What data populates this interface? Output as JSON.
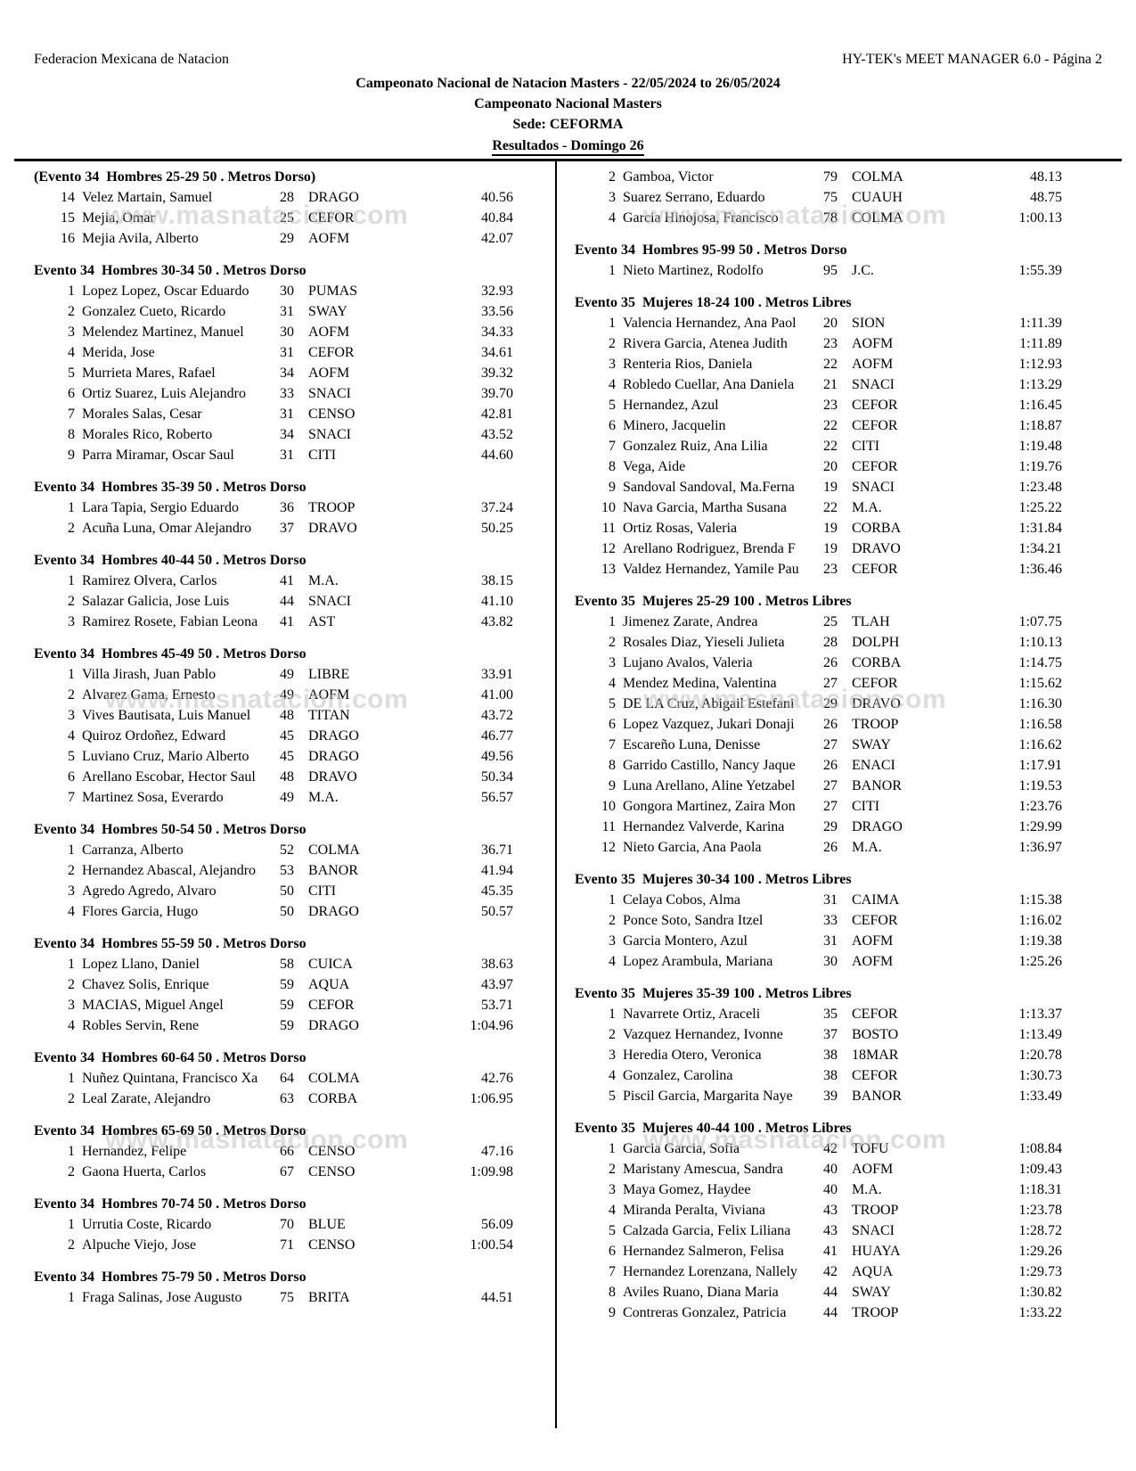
{
  "header": {
    "org": "Federacion Mexicana de Natacion",
    "software": "HY-TEK's MEET MANAGER 6.0 - Página 2",
    "title": "Campeonato Nacional de Natacion Masters - 22/05/2024 to 26/05/2024",
    "subtitle": "Campeonato Nacional Masters",
    "venue": "Sede: CEFORMA",
    "section": "Resultados - Domingo 26"
  },
  "watermark": {
    "text": "www.masnatacion.com"
  },
  "results": {
    "left": [
      {
        "heading": "(Evento 34  Hombres 25-29 50 . Metros Dorso)",
        "rows": [
          {
            "place": "14",
            "name": "Velez Martain, Samuel",
            "age": "28",
            "team": "DRAGO",
            "time": "40.56"
          },
          {
            "place": "15",
            "name": "Mejia, Omar",
            "age": "25",
            "team": "CEFOR",
            "time": "40.84"
          },
          {
            "place": "16",
            "name": "Mejia Avila, Alberto",
            "age": "29",
            "team": "AOFM",
            "time": "42.07"
          }
        ]
      },
      {
        "heading": "Evento 34  Hombres 30-34 50 . Metros Dorso",
        "rows": [
          {
            "place": "1",
            "name": "Lopez Lopez, Oscar Eduardo",
            "age": "30",
            "team": "PUMAS",
            "time": "32.93"
          },
          {
            "place": "2",
            "name": "Gonzalez Cueto, Ricardo",
            "age": "31",
            "team": "SWAY",
            "time": "33.56"
          },
          {
            "place": "3",
            "name": "Melendez Martinez, Manuel",
            "age": "30",
            "team": "AOFM",
            "time": "34.33"
          },
          {
            "place": "4",
            "name": "Merida, Jose",
            "age": "31",
            "team": "CEFOR",
            "time": "34.61"
          },
          {
            "place": "5",
            "name": "Murrieta Mares, Rafael",
            "age": "34",
            "team": "AOFM",
            "time": "39.32"
          },
          {
            "place": "6",
            "name": "Ortiz Suarez, Luis Alejandro",
            "age": "33",
            "team": "SNACI",
            "time": "39.70"
          },
          {
            "place": "7",
            "name": "Morales Salas, Cesar",
            "age": "31",
            "team": "CENSO",
            "time": "42.81"
          },
          {
            "place": "8",
            "name": "Morales Rico, Roberto",
            "age": "34",
            "team": "SNACI",
            "time": "43.52"
          },
          {
            "place": "9",
            "name": "Parra Miramar, Oscar Saul",
            "age": "31",
            "team": "CITI",
            "time": "44.60"
          }
        ]
      },
      {
        "heading": "Evento 34  Hombres 35-39 50 . Metros Dorso",
        "rows": [
          {
            "place": "1",
            "name": "Lara Tapia, Sergio Eduardo",
            "age": "36",
            "team": "TROOP",
            "time": "37.24"
          },
          {
            "place": "2",
            "name": "Acuña Luna, Omar Alejandro",
            "age": "37",
            "team": "DRAVO",
            "time": "50.25"
          }
        ]
      },
      {
        "heading": "Evento 34  Hombres 40-44 50 . Metros Dorso",
        "rows": [
          {
            "place": "1",
            "name": "Ramirez Olvera, Carlos",
            "age": "41",
            "team": "M.A.",
            "time": "38.15"
          },
          {
            "place": "2",
            "name": "Salazar Galicia, Jose Luis",
            "age": "44",
            "team": "SNACI",
            "time": "41.10"
          },
          {
            "place": "3",
            "name": "Ramirez Rosete, Fabian Leona",
            "age": "41",
            "team": "AST",
            "time": "43.82"
          }
        ]
      },
      {
        "heading": "Evento 34  Hombres 45-49 50 . Metros Dorso",
        "rows": [
          {
            "place": "1",
            "name": "Villa Jirash, Juan Pablo",
            "age": "49",
            "team": "LIBRE",
            "time": "33.91"
          },
          {
            "place": "2",
            "name": "Alvarez Gama, Ernesto",
            "age": "49",
            "team": "AOFM",
            "time": "41.00"
          },
          {
            "place": "3",
            "name": "Vives Bautisata, Luis Manuel",
            "age": "48",
            "team": "TITAN",
            "time": "43.72"
          },
          {
            "place": "4",
            "name": "Quiroz Ordoñez, Edward",
            "age": "45",
            "team": "DRAGO",
            "time": "46.77"
          },
          {
            "place": "5",
            "name": "Luviano Cruz, Mario Alberto",
            "age": "45",
            "team": "DRAGO",
            "time": "49.56"
          },
          {
            "place": "6",
            "name": "Arellano Escobar, Hector Saul",
            "age": "48",
            "team": "DRAVO",
            "time": "50.34"
          },
          {
            "place": "7",
            "name": "Martinez Sosa, Everardo",
            "age": "49",
            "team": "M.A.",
            "time": "56.57"
          }
        ]
      },
      {
        "heading": "Evento 34  Hombres 50-54 50 . Metros Dorso",
        "rows": [
          {
            "place": "1",
            "name": "Carranza, Alberto",
            "age": "52",
            "team": "COLMA",
            "time": "36.71"
          },
          {
            "place": "2",
            "name": "Hernandez Abascal, Alejandro",
            "age": "53",
            "team": "BANOR",
            "time": "41.94"
          },
          {
            "place": "3",
            "name": "Agredo Agredo, Alvaro",
            "age": "50",
            "team": "CITI",
            "time": "45.35"
          },
          {
            "place": "4",
            "name": "Flores Garcia, Hugo",
            "age": "50",
            "team": "DRAGO",
            "time": "50.57"
          }
        ]
      },
      {
        "heading": "Evento 34  Hombres 55-59 50 . Metros Dorso",
        "rows": [
          {
            "place": "1",
            "name": "Lopez Llano, Daniel",
            "age": "58",
            "team": "CUICA",
            "time": "38.63"
          },
          {
            "place": "2",
            "name": "Chavez Solis, Enrique",
            "age": "59",
            "team": "AQUA",
            "time": "43.97"
          },
          {
            "place": "3",
            "name": "MACIAS, Miguel Angel",
            "age": "59",
            "team": "CEFOR",
            "time": "53.71"
          },
          {
            "place": "4",
            "name": "Robles Servin, Rene",
            "age": "59",
            "team": "DRAGO",
            "time": "1:04.96"
          }
        ]
      },
      {
        "heading": "Evento 34  Hombres 60-64 50 . Metros Dorso",
        "rows": [
          {
            "place": "1",
            "name": "Nuñez Quintana, Francisco Xa",
            "age": "64",
            "team": "COLMA",
            "time": "42.76"
          },
          {
            "place": "2",
            "name": "Leal Zarate, Alejandro",
            "age": "63",
            "team": "CORBA",
            "time": "1:06.95"
          }
        ]
      },
      {
        "heading": "Evento 34  Hombres 65-69 50 . Metros Dorso",
        "rows": [
          {
            "place": "1",
            "name": "Hernandez, Felipe",
            "age": "66",
            "team": "CENSO",
            "time": "47.16"
          },
          {
            "place": "2",
            "name": "Gaona Huerta, Carlos",
            "age": "67",
            "team": "CENSO",
            "time": "1:09.98"
          }
        ]
      },
      {
        "heading": "Evento 34  Hombres 70-74 50 . Metros Dorso",
        "rows": [
          {
            "place": "1",
            "name": "Urrutia Coste, Ricardo",
            "age": "70",
            "team": "BLUE",
            "time": "56.09"
          },
          {
            "place": "2",
            "name": "Alpuche Viejo, Jose",
            "age": "71",
            "team": "CENSO",
            "time": "1:00.54"
          }
        ]
      },
      {
        "heading": "Evento 34  Hombres 75-79 50 . Metros Dorso",
        "rows": [
          {
            "place": "1",
            "name": "Fraga Salinas, Jose Augusto",
            "age": "75",
            "team": "BRITA",
            "time": "44.51"
          }
        ]
      }
    ],
    "right": [
      {
        "heading": "",
        "rows": [
          {
            "place": "2",
            "name": "Gamboa, Victor",
            "age": "79",
            "team": "COLMA",
            "time": "48.13"
          },
          {
            "place": "3",
            "name": "Suarez Serrano, Eduardo",
            "age": "75",
            "team": "CUAUH",
            "time": "48.75"
          },
          {
            "place": "4",
            "name": "Garcia Hinojosa, Francisco",
            "age": "78",
            "team": "COLMA",
            "time": "1:00.13"
          }
        ]
      },
      {
        "heading": "Evento 34  Hombres 95-99 50 . Metros Dorso",
        "rows": [
          {
            "place": "1",
            "name": "Nieto Martinez, Rodolfo",
            "age": "95",
            "team": "J.C.",
            "time": "1:55.39"
          }
        ]
      },
      {
        "heading": "Evento 35  Mujeres 18-24 100 . Metros Libres",
        "rows": [
          {
            "place": "1",
            "name": "Valencia Hernandez, Ana Paol",
            "age": "20",
            "team": "SION",
            "time": "1:11.39"
          },
          {
            "place": "2",
            "name": "Rivera Garcia, Atenea Judith",
            "age": "23",
            "team": "AOFM",
            "time": "1:11.89"
          },
          {
            "place": "3",
            "name": "Renteria Rios, Daniela",
            "age": "22",
            "team": "AOFM",
            "time": "1:12.93"
          },
          {
            "place": "4",
            "name": "Robledo Cuellar, Ana Daniela",
            "age": "21",
            "team": "SNACI",
            "time": "1:13.29"
          },
          {
            "place": "5",
            "name": "Hernandez, Azul",
            "age": "23",
            "team": "CEFOR",
            "time": "1:16.45"
          },
          {
            "place": "6",
            "name": "Minero, Jacquelin",
            "age": "22",
            "team": "CEFOR",
            "time": "1:18.87"
          },
          {
            "place": "7",
            "name": "Gonzalez Ruiz, Ana Lilia",
            "age": "22",
            "team": "CITI",
            "time": "1:19.48"
          },
          {
            "place": "8",
            "name": "Vega, Aide",
            "age": "20",
            "team": "CEFOR",
            "time": "1:19.76"
          },
          {
            "place": "9",
            "name": "Sandoval Sandoval, Ma.Ferna",
            "age": "19",
            "team": "SNACI",
            "time": "1:23.48"
          },
          {
            "place": "10",
            "name": "Nava Garcia, Martha Susana",
            "age": "22",
            "team": "M.A.",
            "time": "1:25.22"
          },
          {
            "place": "11",
            "name": "Ortiz Rosas, Valeria",
            "age": "19",
            "team": "CORBA",
            "time": "1:31.84"
          },
          {
            "place": "12",
            "name": "Arellano Rodriguez, Brenda F",
            "age": "19",
            "team": "DRAVO",
            "time": "1:34.21"
          },
          {
            "place": "13",
            "name": "Valdez Hernandez, Yamile Pau",
            "age": "23",
            "team": "CEFOR",
            "time": "1:36.46"
          }
        ]
      },
      {
        "heading": "Evento 35  Mujeres 25-29 100 . Metros Libres",
        "rows": [
          {
            "place": "1",
            "name": "Jimenez Zarate, Andrea",
            "age": "25",
            "team": "TLAH",
            "time": "1:07.75"
          },
          {
            "place": "2",
            "name": "Rosales Diaz, Yieseli Julieta",
            "age": "28",
            "team": "DOLPH",
            "time": "1:10.13"
          },
          {
            "place": "3",
            "name": "Lujano Avalos, Valeria",
            "age": "26",
            "team": "CORBA",
            "time": "1:14.75"
          },
          {
            "place": "4",
            "name": "Mendez Medina, Valentina",
            "age": "27",
            "team": "CEFOR",
            "time": "1:15.62"
          },
          {
            "place": "5",
            "name": "DE LA Cruz, Abigail Estefani",
            "age": "29",
            "team": "DRAVO",
            "time": "1:16.30"
          },
          {
            "place": "6",
            "name": "Lopez Vazquez, Jukari Donaji",
            "age": "26",
            "team": "TROOP",
            "time": "1:16.58"
          },
          {
            "place": "7",
            "name": "Escareño Luna, Denisse",
            "age": "27",
            "team": "SWAY",
            "time": "1:16.62"
          },
          {
            "place": "8",
            "name": "Garrido Castillo, Nancy Jaque",
            "age": "26",
            "team": "ENACI",
            "time": "1:17.91"
          },
          {
            "place": "9",
            "name": "Luna Arellano, Aline Yetzabel",
            "age": "27",
            "team": "BANOR",
            "time": "1:19.53"
          },
          {
            "place": "10",
            "name": "Gongora Martinez, Zaira Mon",
            "age": "27",
            "team": "CITI",
            "time": "1:23.76"
          },
          {
            "place": "11",
            "name": "Hernandez Valverde, Karina",
            "age": "29",
            "team": "DRAGO",
            "time": "1:29.99"
          },
          {
            "place": "12",
            "name": "Nieto Garcia, Ana Paola",
            "age": "26",
            "team": "M.A.",
            "time": "1:36.97"
          }
        ]
      },
      {
        "heading": "Evento 35  Mujeres 30-34 100 . Metros Libres",
        "rows": [
          {
            "place": "1",
            "name": "Celaya Cobos, Alma",
            "age": "31",
            "team": "CAIMA",
            "time": "1:15.38"
          },
          {
            "place": "2",
            "name": "Ponce Soto, Sandra Itzel",
            "age": "33",
            "team": "CEFOR",
            "time": "1:16.02"
          },
          {
            "place": "3",
            "name": "Garcia Montero, Azul",
            "age": "31",
            "team": "AOFM",
            "time": "1:19.38"
          },
          {
            "place": "4",
            "name": "Lopez Arambula, Mariana",
            "age": "30",
            "team": "AOFM",
            "time": "1:25.26"
          }
        ]
      },
      {
        "heading": "Evento 35  Mujeres 35-39 100 . Metros Libres",
        "rows": [
          {
            "place": "1",
            "name": "Navarrete Ortiz, Araceli",
            "age": "35",
            "team": "CEFOR",
            "time": "1:13.37"
          },
          {
            "place": "2",
            "name": "Vazquez Hernandez, Ivonne",
            "age": "37",
            "team": "BOSTO",
            "time": "1:13.49"
          },
          {
            "place": "3",
            "name": "Heredia Otero, Veronica",
            "age": "38",
            "team": "18MAR",
            "time": "1:20.78"
          },
          {
            "place": "4",
            "name": "Gonzalez, Carolina",
            "age": "38",
            "team": "CEFOR",
            "time": "1:30.73"
          },
          {
            "place": "5",
            "name": "Piscil Garcia, Margarita Naye",
            "age": "39",
            "team": "BANOR",
            "time": "1:33.49"
          }
        ]
      },
      {
        "heading": "Evento 35  Mujeres 40-44 100 . Metros Libres",
        "rows": [
          {
            "place": "1",
            "name": "Garcia Garcia, Sofia",
            "age": "42",
            "team": "TOFU",
            "time": "1:08.84"
          },
          {
            "place": "2",
            "name": "Maristany Amescua, Sandra",
            "age": "40",
            "team": "AOFM",
            "time": "1:09.43"
          },
          {
            "place": "3",
            "name": "Maya Gomez, Haydee",
            "age": "40",
            "team": "M.A.",
            "time": "1:18.31"
          },
          {
            "place": "4",
            "name": "Miranda Peralta, Viviana",
            "age": "43",
            "team": "TROOP",
            "time": "1:23.78"
          },
          {
            "place": "5",
            "name": "Calzada Garcia, Felix Liliana",
            "age": "43",
            "team": "SNACI",
            "time": "1:28.72"
          },
          {
            "place": "6",
            "name": "Hernandez Salmeron, Felisa",
            "age": "41",
            "team": "HUAYA",
            "time": "1:29.26"
          },
          {
            "place": "7",
            "name": "Hernandez Lorenzana, Nallely",
            "age": "42",
            "team": "AQUA",
            "time": "1:29.73"
          },
          {
            "place": "8",
            "name": "Aviles Ruano, Diana Maria",
            "age": "44",
            "team": "SWAY",
            "time": "1:30.82"
          },
          {
            "place": "9",
            "name": "Contreras Gonzalez, Patricia",
            "age": "44",
            "team": "TROOP",
            "time": "1:33.22"
          }
        ]
      }
    ]
  }
}
